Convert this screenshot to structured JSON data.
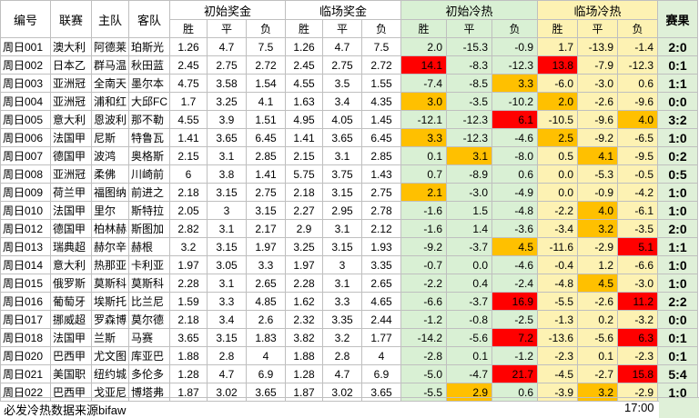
{
  "headers": {
    "no": "编号",
    "league": "联赛",
    "home": "主队",
    "away": "客队",
    "init_odds": "初始奖金",
    "live_odds": "临场奖金",
    "init_cold": "初始冷热",
    "live_cold": "临场冷热",
    "result": "赛果",
    "win": "胜",
    "draw": "平",
    "lose": "负"
  },
  "rows": [
    {
      "no": "周日001",
      "league": "澳大利",
      "home": "阿德莱",
      "away": "珀斯光",
      "io": [
        "1.26",
        "4.7",
        "7.5"
      ],
      "lo": [
        "1.26",
        "4.7",
        "7.5"
      ],
      "ic": [
        "2.0",
        "-15.3",
        "-0.9"
      ],
      "ich": [
        "",
        "",
        ""
      ],
      "lc": [
        "1.7",
        "-13.9",
        "-1.4"
      ],
      "lch": [
        "",
        "",
        ""
      ],
      "res": "2:0"
    },
    {
      "no": "周日002",
      "league": "日本乙",
      "home": "群马温",
      "away": "秋田蓝",
      "io": [
        "2.45",
        "2.75",
        "2.72"
      ],
      "lo": [
        "2.45",
        "2.75",
        "2.72"
      ],
      "ic": [
        "14.1",
        "-8.3",
        "-12.3"
      ],
      "ich": [
        "red",
        "",
        ""
      ],
      "lc": [
        "13.8",
        "-7.9",
        "-12.3"
      ],
      "lch": [
        "red",
        "",
        ""
      ],
      "res": "0:1"
    },
    {
      "no": "周日003",
      "league": "亚洲冠",
      "home": "全南天",
      "away": "墨尔本",
      "io": [
        "4.75",
        "3.58",
        "1.54"
      ],
      "lo": [
        "4.55",
        "3.5",
        "1.55"
      ],
      "ic": [
        "-7.4",
        "-8.5",
        "3.3"
      ],
      "ich": [
        "",
        "",
        "yellow"
      ],
      "lc": [
        "-6.0",
        "-3.0",
        "0.6"
      ],
      "lch": [
        "",
        "",
        ""
      ],
      "res": "1:1"
    },
    {
      "no": "周日004",
      "league": "亚洲冠",
      "home": "浦和红",
      "away": "大邱FC",
      "io": [
        "1.7",
        "3.25",
        "4.1"
      ],
      "lo": [
        "1.63",
        "3.4",
        "4.35"
      ],
      "ic": [
        "3.0",
        "-3.5",
        "-10.2"
      ],
      "ich": [
        "yellow",
        "",
        ""
      ],
      "lc": [
        "2.0",
        "-2.6",
        "-9.6"
      ],
      "lch": [
        "yellow",
        "",
        ""
      ],
      "res": "0:0"
    },
    {
      "no": "周日005",
      "league": "意大利",
      "home": "恩波利",
      "away": "那不勒",
      "io": [
        "4.55",
        "3.9",
        "1.51"
      ],
      "lo": [
        "4.95",
        "4.05",
        "1.45"
      ],
      "ic": [
        "-12.1",
        "-12.3",
        "6.1"
      ],
      "ich": [
        "",
        "",
        "red"
      ],
      "lc": [
        "-10.5",
        "-9.6",
        "4.0"
      ],
      "lch": [
        "",
        "",
        "yellow"
      ],
      "res": "3:2"
    },
    {
      "no": "周日006",
      "league": "法国甲",
      "home": "尼斯",
      "away": "特鲁瓦",
      "io": [
        "1.41",
        "3.65",
        "6.45"
      ],
      "lo": [
        "1.41",
        "3.65",
        "6.45"
      ],
      "ic": [
        "3.3",
        "-12.3",
        "-4.6"
      ],
      "ich": [
        "yellow",
        "",
        ""
      ],
      "lc": [
        "2.5",
        "-9.2",
        "-6.5"
      ],
      "lch": [
        "yellow",
        "",
        ""
      ],
      "res": "1:0"
    },
    {
      "no": "周日007",
      "league": "德国甲",
      "home": "波鸿",
      "away": "奥格斯",
      "io": [
        "2.15",
        "3.1",
        "2.85"
      ],
      "lo": [
        "2.15",
        "3.1",
        "2.85"
      ],
      "ic": [
        "0.1",
        "3.1",
        "-8.0"
      ],
      "ich": [
        "",
        "yellow",
        ""
      ],
      "lc": [
        "0.5",
        "4.1",
        "-9.5"
      ],
      "lch": [
        "",
        "yellow",
        ""
      ],
      "res": "0:2"
    },
    {
      "no": "周日008",
      "league": "亚洲冠",
      "home": "柔佛",
      "away": "川崎前",
      "io": [
        "6",
        "3.8",
        "1.41"
      ],
      "lo": [
        "5.75",
        "3.75",
        "1.43"
      ],
      "ic": [
        "0.7",
        "-8.9",
        "0.6"
      ],
      "ich": [
        "",
        "",
        ""
      ],
      "lc": [
        "0.0",
        "-5.3",
        "-0.5"
      ],
      "lch": [
        "",
        "",
        ""
      ],
      "res": "0:5"
    },
    {
      "no": "周日009",
      "league": "荷兰甲",
      "home": "福图纳",
      "away": "前进之",
      "io": [
        "2.18",
        "3.15",
        "2.75"
      ],
      "lo": [
        "2.18",
        "3.15",
        "2.75"
      ],
      "ic": [
        "2.1",
        "-3.0",
        "-4.9"
      ],
      "ich": [
        "yellow",
        "",
        ""
      ],
      "lc": [
        "0.0",
        "-0.9",
        "-4.2"
      ],
      "lch": [
        "",
        "",
        ""
      ],
      "res": "1:0"
    },
    {
      "no": "周日010",
      "league": "法国甲",
      "home": "里尔",
      "away": "斯特拉",
      "io": [
        "2.05",
        "3",
        "3.15"
      ],
      "lo": [
        "2.27",
        "2.95",
        "2.78"
      ],
      "ic": [
        "-1.6",
        "1.5",
        "-4.8"
      ],
      "ich": [
        "",
        "",
        ""
      ],
      "lc": [
        "-2.2",
        "4.0",
        "-6.1"
      ],
      "lch": [
        "",
        "yellow",
        ""
      ],
      "res": "1:0"
    },
    {
      "no": "周日012",
      "league": "德国甲",
      "home": "柏林赫",
      "away": "斯图加",
      "io": [
        "2.82",
        "3.1",
        "2.17"
      ],
      "lo": [
        "2.9",
        "3.1",
        "2.12"
      ],
      "ic": [
        "-1.6",
        "1.4",
        "-3.6"
      ],
      "ich": [
        "",
        "",
        ""
      ],
      "lc": [
        "-3.4",
        "3.2",
        "-3.5"
      ],
      "lch": [
        "",
        "yellow",
        ""
      ],
      "res": "2:0"
    },
    {
      "no": "周日013",
      "league": "瑞典超",
      "home": "赫尔辛",
      "away": "赫根",
      "io": [
        "3.2",
        "3.15",
        "1.97"
      ],
      "lo": [
        "3.25",
        "3.15",
        "1.93"
      ],
      "ic": [
        "-9.2",
        "-3.7",
        "4.5"
      ],
      "ich": [
        "",
        "",
        "yellow"
      ],
      "lc": [
        "-11.6",
        "-2.9",
        "5.1"
      ],
      "lch": [
        "",
        "",
        "red"
      ],
      "res": "1:1"
    },
    {
      "no": "周日014",
      "league": "意大利",
      "home": "热那亚",
      "away": "卡利亚",
      "io": [
        "1.97",
        "3.05",
        "3.3"
      ],
      "lo": [
        "1.97",
        "3",
        "3.35"
      ],
      "ic": [
        "-0.7",
        "0.0",
        "-4.6"
      ],
      "ich": [
        "",
        "",
        ""
      ],
      "lc": [
        "-0.4",
        "1.2",
        "-6.6"
      ],
      "lch": [
        "",
        "",
        ""
      ],
      "res": "1:0"
    },
    {
      "no": "周日015",
      "league": "俄罗斯",
      "home": "莫斯科",
      "away": "莫斯科",
      "io": [
        "2.28",
        "3.1",
        "2.65"
      ],
      "lo": [
        "2.28",
        "3.1",
        "2.65"
      ],
      "ic": [
        "-2.2",
        "0.4",
        "-2.4"
      ],
      "ich": [
        "",
        "",
        ""
      ],
      "lc": [
        "-4.8",
        "4.5",
        "-3.0"
      ],
      "lch": [
        "",
        "yellow",
        ""
      ],
      "res": "1:0"
    },
    {
      "no": "周日016",
      "league": "葡萄牙",
      "home": "埃斯托",
      "away": "比兰尼",
      "io": [
        "1.59",
        "3.3",
        "4.85"
      ],
      "lo": [
        "1.62",
        "3.3",
        "4.65"
      ],
      "ic": [
        "-6.6",
        "-3.7",
        "16.9"
      ],
      "ich": [
        "",
        "",
        "red"
      ],
      "lc": [
        "-5.5",
        "-2.6",
        "11.2"
      ],
      "lch": [
        "",
        "",
        "red"
      ],
      "res": "2:2"
    },
    {
      "no": "周日017",
      "league": "挪威超",
      "home": "罗森博",
      "away": "莫尔德",
      "io": [
        "2.18",
        "3.4",
        "2.6"
      ],
      "lo": [
        "2.32",
        "3.35",
        "2.44"
      ],
      "ic": [
        "-1.2",
        "-0.8",
        "-2.5"
      ],
      "ich": [
        "",
        "",
        ""
      ],
      "lc": [
        "-1.3",
        "0.2",
        "-3.2"
      ],
      "lch": [
        "",
        "",
        ""
      ],
      "res": "0:0"
    },
    {
      "no": "周日018",
      "league": "法国甲",
      "home": "兰斯",
      "away": "马赛",
      "io": [
        "3.65",
        "3.15",
        "1.83"
      ],
      "lo": [
        "3.82",
        "3.2",
        "1.77"
      ],
      "ic": [
        "-14.2",
        "-5.6",
        "7.2"
      ],
      "ich": [
        "",
        "",
        "red"
      ],
      "lc": [
        "-13.6",
        "-5.6",
        "6.3"
      ],
      "lch": [
        "",
        "",
        "red"
      ],
      "res": "0:1"
    },
    {
      "no": "周日020",
      "league": "巴西甲",
      "home": "尤文图",
      "away": "库亚巴",
      "io": [
        "1.88",
        "2.8",
        "4"
      ],
      "lo": [
        "1.88",
        "2.8",
        "4"
      ],
      "ic": [
        "-2.8",
        "0.1",
        "-1.2"
      ],
      "ich": [
        "",
        "",
        ""
      ],
      "lc": [
        "-2.3",
        "0.1",
        "-2.3"
      ],
      "lch": [
        "",
        "",
        ""
      ],
      "res": "0:1"
    },
    {
      "no": "周日021",
      "league": "美国职",
      "home": "纽约城",
      "away": "多伦多",
      "io": [
        "1.28",
        "4.7",
        "6.9"
      ],
      "lo": [
        "1.28",
        "4.7",
        "6.9"
      ],
      "ic": [
        "-5.0",
        "-4.7",
        "21.7"
      ],
      "ich": [
        "",
        "",
        "red"
      ],
      "lc": [
        "-4.5",
        "-2.7",
        "15.8"
      ],
      "lch": [
        "",
        "",
        "red"
      ],
      "res": "5:4"
    },
    {
      "no": "周日022",
      "league": "巴西甲",
      "home": "戈亚尼",
      "away": "博塔弗",
      "io": [
        "1.87",
        "3.02",
        "3.65"
      ],
      "lo": [
        "1.87",
        "3.02",
        "3.65"
      ],
      "ic": [
        "-5.5",
        "2.9",
        "0.6"
      ],
      "ich": [
        "",
        "yellow",
        ""
      ],
      "lc": [
        "-3.9",
        "3.2",
        "-2.9"
      ],
      "lch": [
        "",
        "yellow",
        ""
      ],
      "res": "1:0"
    }
  ],
  "footer": {
    "source": "必发冷热数据来源bifaw",
    "time": "17:00"
  }
}
